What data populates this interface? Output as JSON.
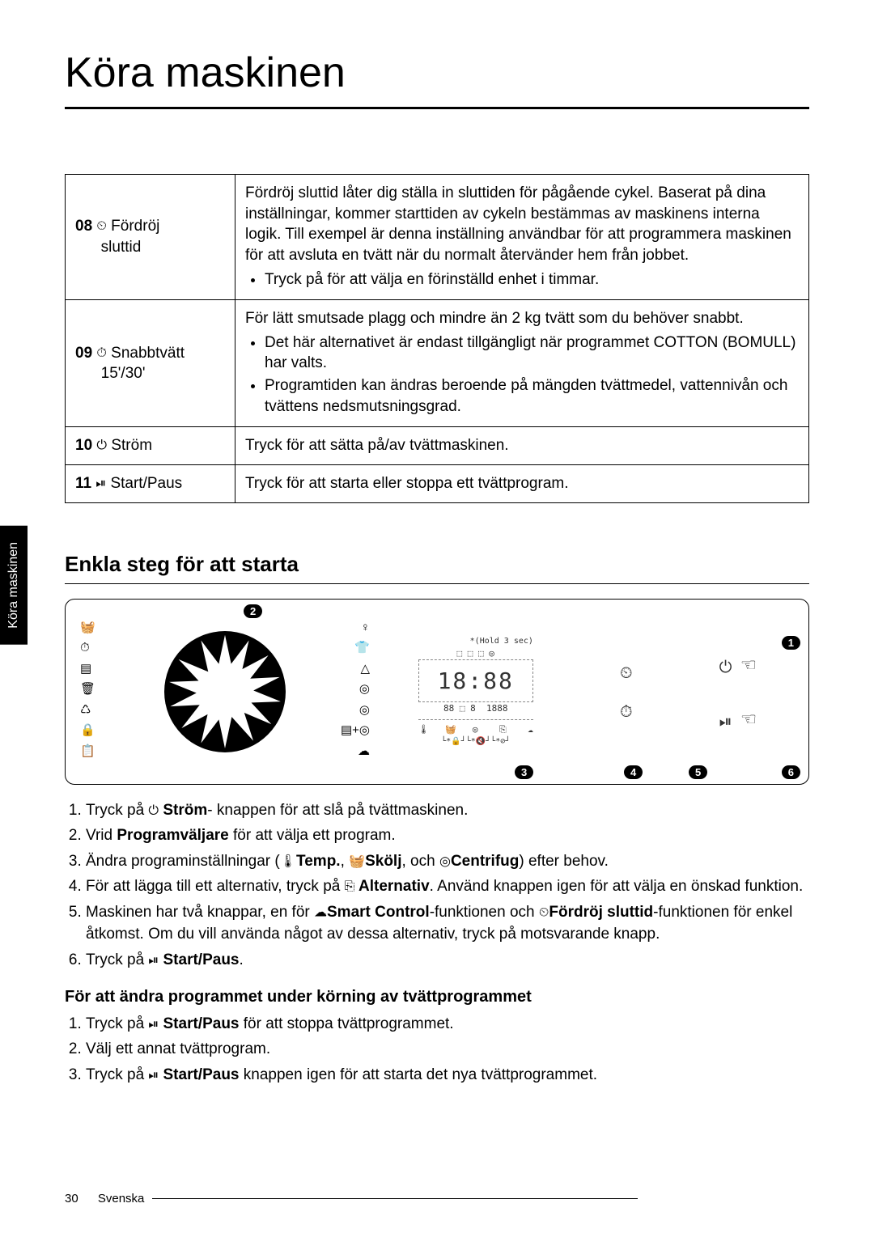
{
  "side_tab": "Köra maskinen",
  "title": "Köra maskinen",
  "table": {
    "rows": [
      {
        "num": "08",
        "icon": "⏲",
        "label_l1": "Fördröj",
        "label_l2": "sluttid",
        "desc_main": "Fördröj sluttid låter dig ställa in sluttiden för pågående cykel. Baserat på dina inställningar, kommer starttiden av cykeln bestämmas av maskinens interna logik. Till exempel är denna inställning användbar för att programmera maskinen för att avsluta en tvätt när du normalt återvänder hem från jobbet.",
        "bullets": [
          "Tryck på för att välja en förinställd enhet i timmar."
        ]
      },
      {
        "num": "09",
        "icon": "⏱",
        "label_l1": "Snabbtvätt",
        "label_l2": "15'/30'",
        "desc_main": "För lätt smutsade plagg och mindre än 2 kg tvätt som du behöver snabbt.",
        "bullets": [
          "Det här alternativet är endast tillgängligt när programmet COTTON (BOMULL) har valts.",
          "Programtiden kan ändras beroende på mängden tvättmedel, vattennivån och tvättens nedsmutsningsgrad."
        ]
      },
      {
        "num": "10",
        "icon": "⏻",
        "label_l1": "Ström",
        "label_l2": "",
        "desc_main": "Tryck för att sätta på/av tvättmaskinen.",
        "bullets": []
      },
      {
        "num": "11",
        "icon": "⏯",
        "label_l1": "Start/Paus",
        "label_l2": "",
        "desc_main": "Tryck för att starta eller stoppa ett tvättprogram.",
        "bullets": []
      }
    ]
  },
  "section2": {
    "heading": "Enkla steg för att starta",
    "markers": {
      "m1": "1",
      "m2": "2",
      "m3": "3",
      "m4": "4",
      "m5": "5",
      "m6": "6"
    },
    "display": {
      "hold_note": "*(Hold 3 sec)",
      "seg_time": "18:88",
      "seg_small1": "88",
      "seg_small2": "8",
      "seg_small3": "1888"
    },
    "steps": [
      {
        "pre": "Tryck på ",
        "icon": "⏻",
        "bold": " Ström",
        "post": "- knappen för att slå på tvättmaskinen."
      },
      {
        "pre": "Vrid ",
        "icon": "",
        "bold": "Programväljare",
        "post": " för att välja ett program."
      },
      {
        "pre": "Ändra programinställningar (",
        "icon": "🌡",
        "bold": "Temp.",
        "mid": ", ",
        "icon2": "🧺",
        "bold2": "Skölj",
        "mid2": ", och ",
        "icon3": "◎",
        "bold3": "Centrifug",
        "post": ") efter behov."
      },
      {
        "pre": "För att lägga till ett alternativ, tryck på ",
        "icon": "⎘",
        "bold": " Alternativ",
        "post": ". Använd knappen igen för att välja en önskad funktion."
      },
      {
        "pre": "Maskinen har två knappar, en för ",
        "icon": "☁",
        "bold": "Smart Control",
        "mid": "-funktionen och ",
        "icon2": "⏲",
        "bold2": "Fördröj sluttid",
        "post": "-funktionen för enkel åtkomst. Om du vill använda något av dessa alternativ, tryck på motsvarande knapp."
      },
      {
        "pre": "Tryck på ",
        "icon": "⏯",
        "bold": " Start/Paus",
        "post": "."
      }
    ],
    "sub_heading": "För att ändra programmet under körning av tvättprogrammet",
    "sub_steps": [
      {
        "pre": "Tryck på ",
        "icon": "⏯",
        "bold": " Start/Paus",
        "post": " för att stoppa tvättprogrammet."
      },
      {
        "pre": "Välj ett annat tvättprogram.",
        "icon": "",
        "bold": "",
        "post": ""
      },
      {
        "pre": "Tryck på ",
        "icon": "⏯",
        "bold": " Start/Paus",
        "post": " knappen igen för att starta det nya tvättprogrammet."
      }
    ]
  },
  "footer": {
    "page": "30",
    "lang": "Svenska"
  }
}
